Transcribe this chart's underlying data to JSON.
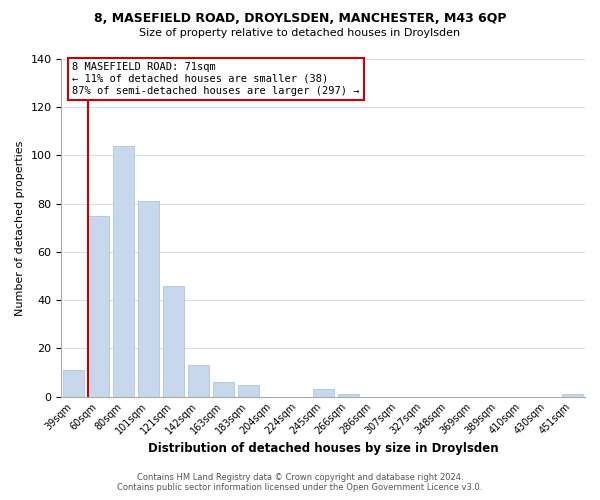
{
  "title": "8, MASEFIELD ROAD, DROYLSDEN, MANCHESTER, M43 6QP",
  "subtitle": "Size of property relative to detached houses in Droylsden",
  "xlabel": "Distribution of detached houses by size in Droylsden",
  "ylabel": "Number of detached properties",
  "footer_line1": "Contains HM Land Registry data © Crown copyright and database right 2024.",
  "footer_line2": "Contains public sector information licensed under the Open Government Licence v3.0.",
  "categories": [
    "39sqm",
    "60sqm",
    "80sqm",
    "101sqm",
    "121sqm",
    "142sqm",
    "163sqm",
    "183sqm",
    "204sqm",
    "224sqm",
    "245sqm",
    "266sqm",
    "286sqm",
    "307sqm",
    "327sqm",
    "348sqm",
    "369sqm",
    "389sqm",
    "410sqm",
    "430sqm",
    "451sqm"
  ],
  "values": [
    11,
    75,
    104,
    81,
    46,
    13,
    6,
    5,
    0,
    0,
    3,
    1,
    0,
    0,
    0,
    0,
    0,
    0,
    0,
    0,
    1
  ],
  "bar_color": "#c8d8ec",
  "bar_edge_color": "#b0c4dc",
  "vline_color": "#cc0000",
  "ylim": [
    0,
    140
  ],
  "yticks": [
    0,
    20,
    40,
    60,
    80,
    100,
    120,
    140
  ],
  "annotation_line1": "8 MASEFIELD ROAD: 71sqm",
  "annotation_line2": "← 11% of detached houses are smaller (38)",
  "annotation_line3": "87% of semi-detached houses are larger (297) →",
  "annotation_box_color": "#ffffff",
  "annotation_box_edge_color": "#cc0000",
  "grid_color": "#d0dce8",
  "background_color": "#ffffff"
}
